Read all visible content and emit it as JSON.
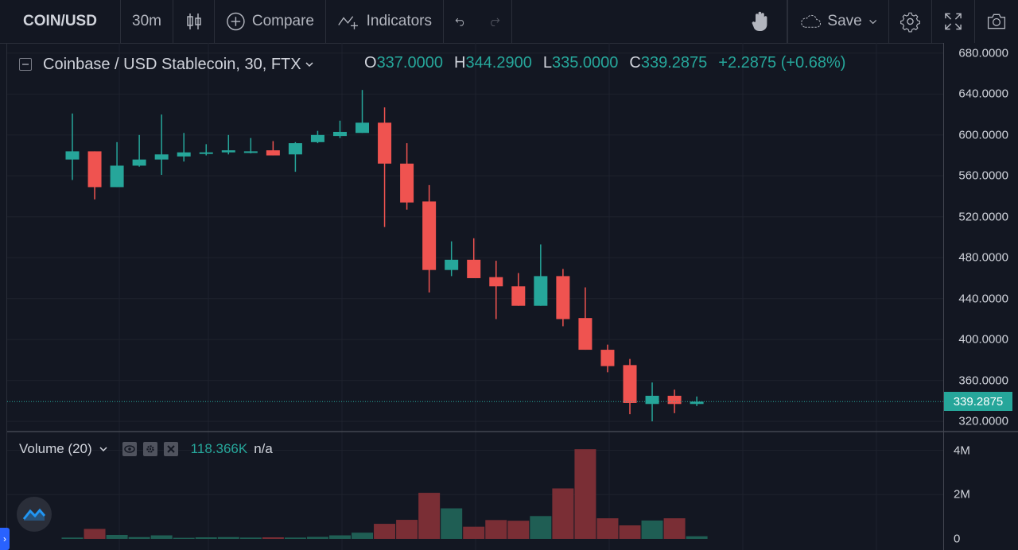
{
  "toolbar": {
    "symbol": "COIN/USD",
    "interval": "30m",
    "compare_label": "Compare",
    "indicators_label": "Indicators",
    "save_label": "Save"
  },
  "legend": {
    "title": "Coinbase / USD Stablecoin, 30, FTX",
    "open_prefix": "O",
    "open": "337.0000",
    "high_prefix": "H",
    "high": "344.2900",
    "low_prefix": "L",
    "low": "335.0000",
    "close_prefix": "C",
    "close": "339.2875",
    "change": "+2.2875 (+0.68%)"
  },
  "volume_legend": {
    "title": "Volume (20)",
    "value": "118.366K",
    "ma_value": "n/a"
  },
  "price_scale": {
    "labels": [
      "680.0000",
      "640.0000",
      "600.0000",
      "560.0000",
      "520.0000",
      "480.0000",
      "440.0000",
      "400.0000",
      "360.0000",
      "320.0000"
    ],
    "last_price": "339.2875"
  },
  "volume_scale": {
    "labels": [
      "4M",
      "2M",
      "0"
    ]
  },
  "colors": {
    "up": "#26a69a",
    "down": "#ef5350",
    "up_volume": "#1f5e54",
    "down_volume": "#7a2e35",
    "background": "#131722"
  },
  "chart_data": {
    "type": "candlestick",
    "ylim": [
      310,
      690
    ],
    "volume_ylim": [
      0,
      4200000
    ],
    "candles": [
      {
        "o": 576,
        "h": 621,
        "l": 556,
        "c": 584,
        "v": 60000
      },
      {
        "o": 584,
        "h": 584,
        "l": 537,
        "c": 549,
        "v": 450000
      },
      {
        "o": 549,
        "h": 593,
        "l": 549,
        "c": 570,
        "v": 180000
      },
      {
        "o": 570,
        "h": 600,
        "l": 569,
        "c": 576,
        "v": 80000
      },
      {
        "o": 576,
        "h": 620,
        "l": 561,
        "c": 581,
        "v": 160000
      },
      {
        "o": 579,
        "h": 602,
        "l": 574,
        "c": 583,
        "v": 50000
      },
      {
        "o": 582,
        "h": 591,
        "l": 580,
        "c": 583,
        "v": 70000
      },
      {
        "o": 583,
        "h": 600,
        "l": 581,
        "c": 585,
        "v": 80000
      },
      {
        "o": 584,
        "h": 597,
        "l": 582,
        "c": 584,
        "v": 60000
      },
      {
        "o": 585,
        "h": 594,
        "l": 580,
        "c": 580,
        "v": 70000
      },
      {
        "o": 581,
        "h": 593,
        "l": 564,
        "c": 592,
        "v": 60000
      },
      {
        "o": 593,
        "h": 604,
        "l": 592,
        "c": 600,
        "v": 90000
      },
      {
        "o": 599,
        "h": 614,
        "l": 597,
        "c": 603,
        "v": 160000
      },
      {
        "o": 602,
        "h": 644,
        "l": 602,
        "c": 612,
        "v": 280000
      },
      {
        "o": 612,
        "h": 627,
        "l": 510,
        "c": 572,
        "v": 680000
      },
      {
        "o": 572,
        "h": 592,
        "l": 527,
        "c": 534,
        "v": 860000
      },
      {
        "o": 535,
        "h": 551,
        "l": 446,
        "c": 468,
        "v": 2080000
      },
      {
        "o": 468,
        "h": 496,
        "l": 462,
        "c": 478,
        "v": 1380000
      },
      {
        "o": 478,
        "h": 499,
        "l": 460,
        "c": 460,
        "v": 550000
      },
      {
        "o": 461,
        "h": 477,
        "l": 420,
        "c": 452,
        "v": 850000
      },
      {
        "o": 452,
        "h": 465,
        "l": 433,
        "c": 433,
        "v": 820000
      },
      {
        "o": 433,
        "h": 493,
        "l": 433,
        "c": 462,
        "v": 1030000
      },
      {
        "o": 462,
        "h": 469,
        "l": 413,
        "c": 420,
        "v": 2280000
      },
      {
        "o": 421,
        "h": 451,
        "l": 390,
        "c": 390,
        "v": 4050000
      },
      {
        "o": 390,
        "h": 395,
        "l": 368,
        "c": 374,
        "v": 930000
      },
      {
        "o": 375,
        "h": 381,
        "l": 327,
        "c": 338,
        "v": 610000
      },
      {
        "o": 337,
        "h": 358,
        "l": 320,
        "c": 345,
        "v": 830000
      },
      {
        "o": 345,
        "h": 351,
        "l": 328,
        "c": 337,
        "v": 930000
      },
      {
        "o": 337,
        "h": 344.29,
        "l": 335,
        "c": 339.2875,
        "v": 118366
      }
    ]
  }
}
